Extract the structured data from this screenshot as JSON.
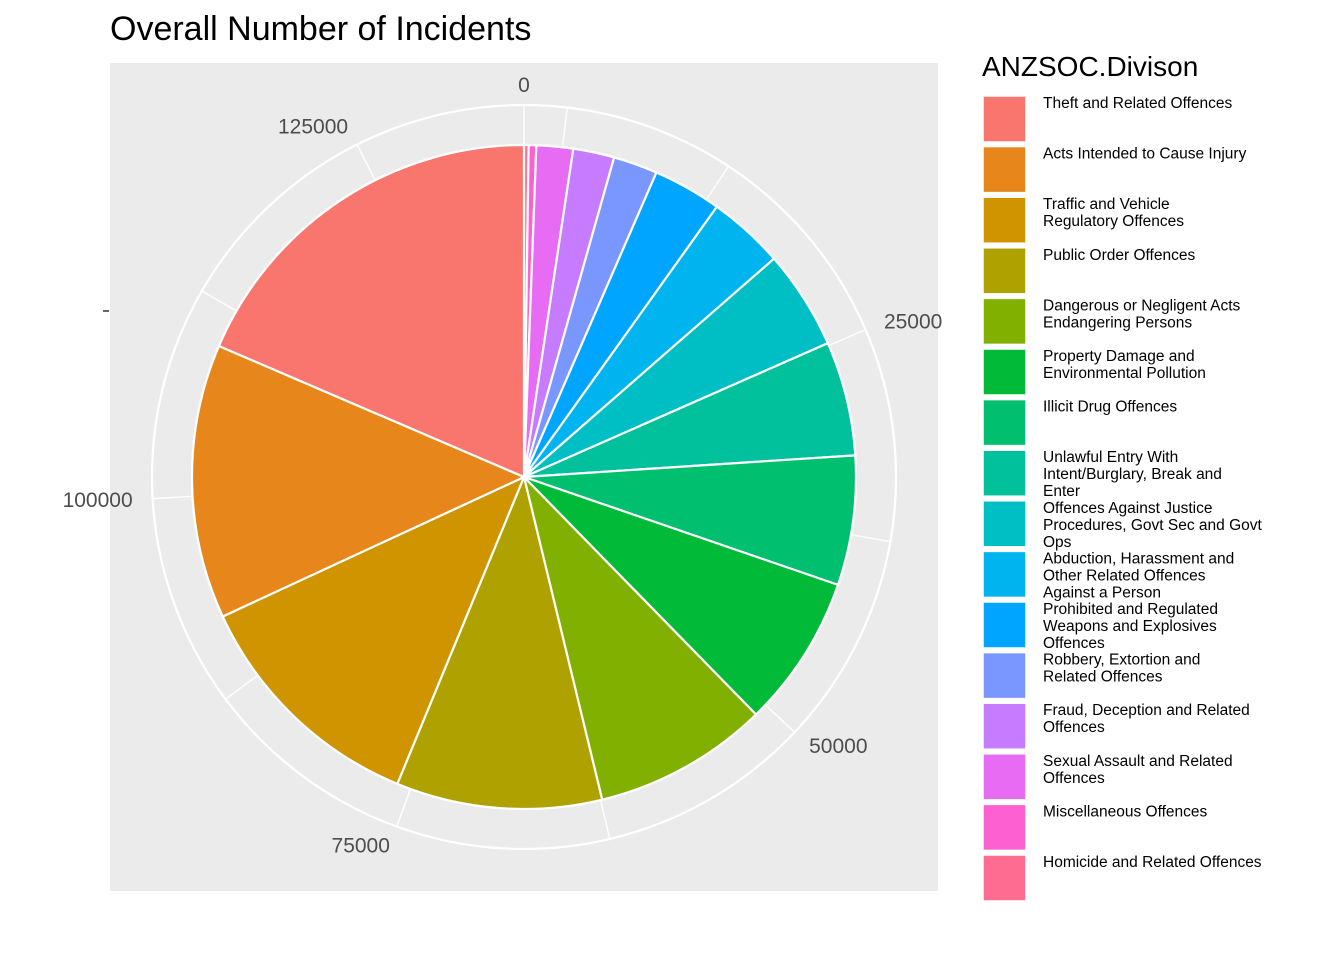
{
  "chart_data": {
    "type": "pie",
    "title": "Overall Number of Incidents",
    "xlabel": "",
    "ylabel": "",
    "axis_ticks": [
      "0",
      "25000",
      "50000",
      "75000",
      "100000",
      "125000"
    ],
    "axis_max": 135000,
    "legend_title": "ANZSOC.Divison",
    "legend_position": "right",
    "slices": [
      {
        "label": "Theft and Related Offences",
        "value": 25000,
        "color": "#F8766D"
      },
      {
        "label": "Acts Intended to Cause Injury",
        "value": 18000,
        "color": "#E7861B"
      },
      {
        "label": "Traffic and Vehicle Regulatory Offences",
        "value": 16000,
        "color": "#CF9400"
      },
      {
        "label": "Public Order Offences",
        "value": 13500,
        "color": "#AFA100"
      },
      {
        "label": "Dangerous or Negligent Acts Endangering Persons",
        "value": 11500,
        "color": "#81B000"
      },
      {
        "label": "Property Damage and Environmental Pollution",
        "value": 10000,
        "color": "#00BA38"
      },
      {
        "label": "Illicit Drug Offences",
        "value": 8500,
        "color": "#00BF6F"
      },
      {
        "label": "Unlawful Entry With Intent/Burglary, Break and Enter",
        "value": 7500,
        "color": "#00C19C"
      },
      {
        "label": "Offences Against Justice Procedures, Govt Sec and Govt Ops",
        "value": 6500,
        "color": "#00BFC4"
      },
      {
        "label": "Abduction, Harassment and Other Related Offences Against a Person",
        "value": 5000,
        "color": "#00B4EF"
      },
      {
        "label": "Prohibited and Regulated Weapons and Explosives Offences",
        "value": 4500,
        "color": "#00A5FF"
      },
      {
        "label": "Robbery, Extortion and Related Offences",
        "value": 2900,
        "color": "#7997FF"
      },
      {
        "label": "Fraud, Deception and Related Offences",
        "value": 2700,
        "color": "#C77CFF"
      },
      {
        "label": "Sexual Assault and Related Offences",
        "value": 2400,
        "color": "#E76BF3"
      },
      {
        "label": "Miscellaneous Offences",
        "value": 500,
        "color": "#FD61D1"
      },
      {
        "label": "Homicide and Related Offences",
        "value": 300,
        "color": "#FF6C91"
      }
    ],
    "legend_lines": [
      [
        "Theft and Related Offences"
      ],
      [
        "Acts Intended to Cause Injury"
      ],
      [
        "Traffic and Vehicle",
        "Regulatory Offences"
      ],
      [
        "Public Order Offences"
      ],
      [
        "Dangerous or Negligent Acts",
        "Endangering Persons"
      ],
      [
        "Property Damage and",
        "Environmental Pollution"
      ],
      [
        "Illicit Drug Offences"
      ],
      [
        "Unlawful Entry With",
        "Intent/Burglary, Break and",
        "Enter"
      ],
      [
        "Offences Against Justice",
        "Procedures, Govt Sec and Govt",
        "Ops"
      ],
      [
        "Abduction, Harassment and",
        "Other Related Offences",
        "Against a Person"
      ],
      [
        "Prohibited and Regulated",
        "Weapons and Explosives",
        "Offences"
      ],
      [
        "Robbery, Extortion and",
        "Related Offences"
      ],
      [
        "Fraud, Deception and Related",
        "Offences"
      ],
      [
        "Sexual Assault and Related",
        "Offences"
      ],
      [
        "Miscellaneous Offences"
      ],
      [
        "Homicide and Related Offences"
      ]
    ],
    "colors": {
      "panel_background": "#EBEBEB",
      "grid": "#FFFFFF",
      "slice_border": "#FFFFFF"
    }
  }
}
